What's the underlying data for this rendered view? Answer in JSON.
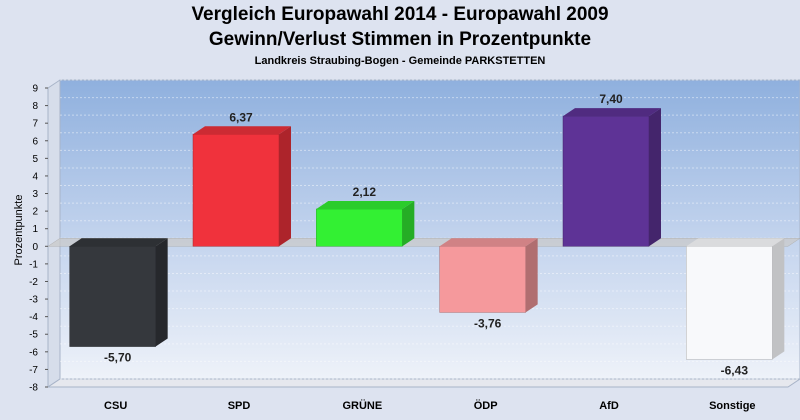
{
  "chart_data": {
    "type": "bar",
    "title": "Vergleich Europawahl 2014 - Europawahl 2009",
    "subtitle": "Gewinn/Verlust Stimmen in Prozentpunkte",
    "subsubtitle": "Landkreis Straubing-Bogen - Gemeinde PARKSTETTEN",
    "ylabel": "Prozentpunkte",
    "xlabel": "",
    "ylim": [
      -8,
      9
    ],
    "yticks": [
      "-8",
      "-7",
      "-6",
      "-5",
      "-4",
      "-3",
      "-2",
      "-1",
      "0",
      "1",
      "2",
      "3",
      "4",
      "5",
      "6",
      "7",
      "8",
      "9"
    ],
    "grid": true,
    "categories": [
      "CSU",
      "SPD",
      "GRÜNE",
      "ÖDP",
      "AfD",
      "Sonstige"
    ],
    "values": [
      -5.7,
      6.37,
      2.12,
      -3.76,
      7.4,
      -6.43
    ],
    "value_labels": [
      "-5,70",
      "6,37",
      "2,12",
      "-3,76",
      "7,40",
      "-6,43"
    ],
    "colors": [
      "#35383d",
      "#f0323c",
      "#33f033",
      "#f5999c",
      "#5e3396",
      "#f8f9fb"
    ]
  }
}
